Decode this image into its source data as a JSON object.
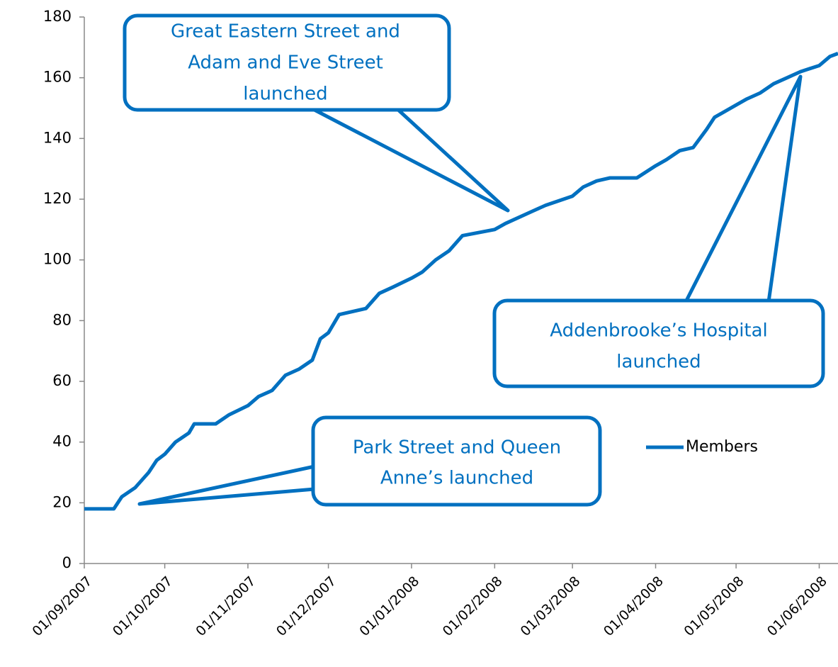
{
  "chart_data": {
    "type": "line",
    "x": [
      "01/09/2007",
      "12/09/2007",
      "15/09/2007",
      "20/09/2007",
      "25/09/2007",
      "28/09/2007",
      "01/10/2007",
      "05/10/2007",
      "10/10/2007",
      "12/10/2007",
      "20/10/2007",
      "25/10/2007",
      "01/11/2007",
      "05/11/2007",
      "10/11/2007",
      "15/11/2007",
      "20/11/2007",
      "25/11/2007",
      "28/11/2007",
      "01/12/2007",
      "05/12/2007",
      "15/12/2007",
      "20/12/2007",
      "25/12/2007",
      "01/01/2008",
      "05/01/2008",
      "10/01/2008",
      "15/01/2008",
      "20/01/2008",
      "01/02/2008",
      "05/02/2008",
      "15/02/2008",
      "20/02/2008",
      "01/03/2008",
      "05/03/2008",
      "10/03/2008",
      "15/03/2008",
      "25/03/2008",
      "01/04/2008",
      "05/04/2008",
      "10/04/2008",
      "15/04/2008",
      "20/04/2008",
      "23/04/2008",
      "01/05/2008",
      "05/05/2008",
      "10/05/2008",
      "15/05/2008",
      "20/05/2008",
      "25/05/2008",
      "01/06/2008",
      "05/06/2008",
      "08/06/2008"
    ],
    "series": [
      {
        "name": "Members",
        "color": "#0070c0",
        "values": [
          18,
          18,
          22,
          25,
          30,
          34,
          36,
          40,
          43,
          46,
          46,
          49,
          52,
          55,
          57,
          62,
          64,
          67,
          74,
          76,
          82,
          84,
          89,
          91,
          94,
          96,
          100,
          103,
          108,
          110,
          112,
          116,
          118,
          121,
          124,
          126,
          127,
          127,
          131,
          133,
          136,
          137,
          143,
          147,
          151,
          153,
          155,
          158,
          160,
          162,
          164,
          167,
          168
        ]
      }
    ],
    "xlim": [
      "01/09/2007",
      "08/06/2008"
    ],
    "xticks": [
      "01/09/2007",
      "01/10/2007",
      "01/11/2007",
      "01/12/2007",
      "01/01/2008",
      "01/02/2008",
      "01/03/2008",
      "01/04/2008",
      "01/05/2008",
      "01/06/2008"
    ],
    "ylim": [
      0,
      180
    ],
    "yticks": [
      0,
      20,
      40,
      60,
      80,
      100,
      120,
      140,
      160,
      180
    ],
    "legend": "right",
    "annotations": [
      {
        "lines": [
          "Great Eastern Street and",
          "Adam and Eve Street",
          "launched"
        ]
      },
      {
        "lines": [
          "Addenbrooke’s Hospital",
          "launched"
        ]
      },
      {
        "lines": [
          "Park Street and Queen",
          "Anne’s launched"
        ]
      }
    ]
  }
}
